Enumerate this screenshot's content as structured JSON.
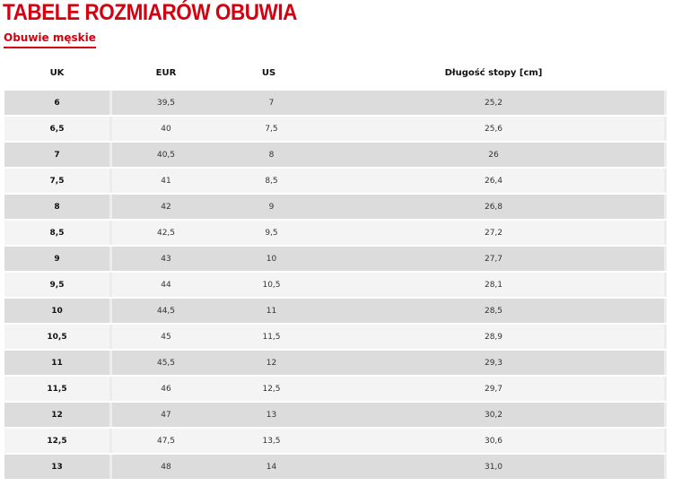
{
  "title": "TABELE ROZMIARÓW OBUWIA",
  "subtitle": "Obuwie męskie",
  "headers": [
    "UK",
    "EUR",
    "US",
    "Długość stopy [cm]"
  ],
  "rows": [
    [
      "6",
      "39,5",
      "7",
      "25,2"
    ],
    [
      "6,5",
      "40",
      "7,5",
      "25,6"
    ],
    [
      "7",
      "40,5",
      "8",
      "26"
    ],
    [
      "7,5",
      "41",
      "8,5",
      "26,4"
    ],
    [
      "8",
      "42",
      "9",
      "26,8"
    ],
    [
      "8,5",
      "42,5",
      "9,5",
      "27,2"
    ],
    [
      "9",
      "43",
      "10",
      "27,7"
    ],
    [
      "9,5",
      "44",
      "10,5",
      "28,1"
    ],
    [
      "10",
      "44,5",
      "11",
      "28,5"
    ],
    [
      "10,5",
      "45",
      "11,5",
      "28,9"
    ],
    [
      "11",
      "45,5",
      "12",
      "29,3"
    ],
    [
      "11,5",
      "46",
      "12,5",
      "29,7"
    ],
    [
      "12",
      "47",
      "13",
      "30,2"
    ],
    [
      "12,5",
      "47,5",
      "13,5",
      "30,6"
    ],
    [
      "13",
      "48",
      "14",
      "31,0"
    ]
  ],
  "colors": {
    "accent": "#d5000f",
    "row_dark": "#dcdcdc",
    "row_light": "#f4f4f4"
  }
}
